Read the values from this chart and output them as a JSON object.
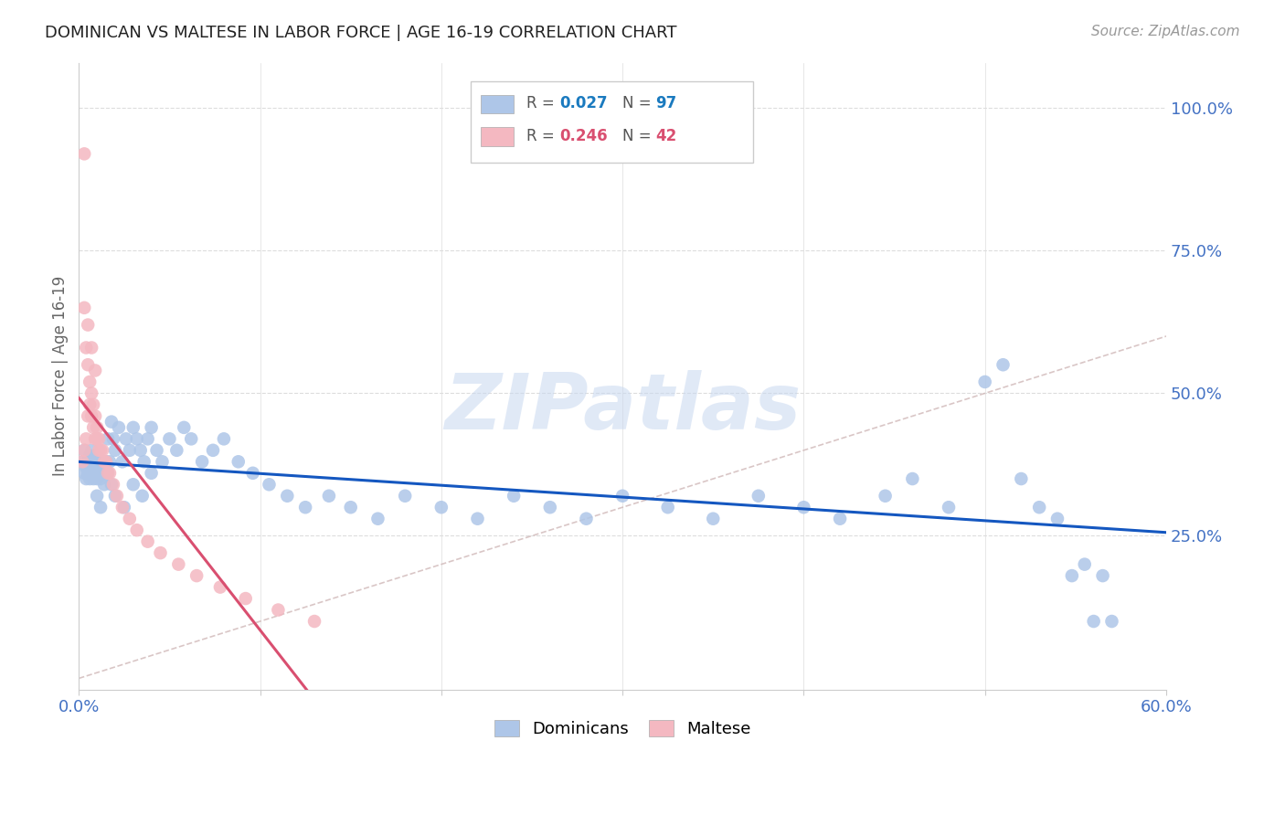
{
  "title": "DOMINICAN VS MALTESE IN LABOR FORCE | AGE 16-19 CORRELATION CHART",
  "source": "Source: ZipAtlas.com",
  "ylabel": "In Labor Force | Age 16-19",
  "xlim": [
    0.0,
    0.6
  ],
  "ylim": [
    -0.02,
    1.08
  ],
  "right_yticks": [
    0.25,
    0.5,
    0.75,
    1.0
  ],
  "right_yticklabels": [
    "25.0%",
    "50.0%",
    "75.0%",
    "100.0%"
  ],
  "dominican_color": "#aec6e8",
  "maltese_color": "#f4b8c1",
  "dominican_R": 0.027,
  "dominican_N": 97,
  "maltese_R": 0.246,
  "maltese_N": 42,
  "trend_blue": "#1457c0",
  "trend_pink": "#d94f70",
  "diagonal_color": "#d0b8b8",
  "legend_R_blue": "#1a7abf",
  "legend_R_pink": "#d94f70",
  "watermark": "ZIPatlas",
  "watermark_color": "#c8d8f0",
  "background_color": "#ffffff",
  "grid_color": "#dddddd",
  "axis_label_color": "#666666",
  "right_axis_color": "#4472c4",
  "dominican_x": [
    0.002,
    0.003,
    0.003,
    0.004,
    0.004,
    0.005,
    0.005,
    0.006,
    0.006,
    0.006,
    0.007,
    0.007,
    0.007,
    0.008,
    0.008,
    0.008,
    0.009,
    0.009,
    0.01,
    0.01,
    0.01,
    0.011,
    0.011,
    0.012,
    0.012,
    0.013,
    0.013,
    0.014,
    0.015,
    0.015,
    0.016,
    0.017,
    0.018,
    0.019,
    0.02,
    0.022,
    0.024,
    0.026,
    0.028,
    0.03,
    0.032,
    0.034,
    0.036,
    0.038,
    0.04,
    0.043,
    0.046,
    0.05,
    0.054,
    0.058,
    0.062,
    0.068,
    0.074,
    0.08,
    0.088,
    0.096,
    0.105,
    0.115,
    0.125,
    0.138,
    0.15,
    0.165,
    0.18,
    0.2,
    0.22,
    0.24,
    0.26,
    0.28,
    0.3,
    0.325,
    0.35,
    0.375,
    0.4,
    0.42,
    0.445,
    0.46,
    0.48,
    0.5,
    0.51,
    0.52,
    0.53,
    0.54,
    0.548,
    0.555,
    0.56,
    0.565,
    0.57,
    0.01,
    0.012,
    0.014,
    0.016,
    0.018,
    0.02,
    0.025,
    0.03,
    0.035,
    0.04
  ],
  "dominican_y": [
    0.38,
    0.36,
    0.4,
    0.37,
    0.35,
    0.38,
    0.36,
    0.37,
    0.39,
    0.35,
    0.36,
    0.38,
    0.4,
    0.37,
    0.35,
    0.39,
    0.36,
    0.38,
    0.37,
    0.35,
    0.39,
    0.36,
    0.38,
    0.37,
    0.35,
    0.38,
    0.36,
    0.37,
    0.38,
    0.36,
    0.42,
    0.38,
    0.45,
    0.42,
    0.4,
    0.44,
    0.38,
    0.42,
    0.4,
    0.44,
    0.42,
    0.4,
    0.38,
    0.42,
    0.44,
    0.4,
    0.38,
    0.42,
    0.4,
    0.44,
    0.42,
    0.38,
    0.4,
    0.42,
    0.38,
    0.36,
    0.34,
    0.32,
    0.3,
    0.32,
    0.3,
    0.28,
    0.32,
    0.3,
    0.28,
    0.32,
    0.3,
    0.28,
    0.32,
    0.3,
    0.28,
    0.32,
    0.3,
    0.28,
    0.32,
    0.35,
    0.3,
    0.52,
    0.55,
    0.35,
    0.3,
    0.28,
    0.18,
    0.2,
    0.1,
    0.18,
    0.1,
    0.32,
    0.3,
    0.34,
    0.36,
    0.34,
    0.32,
    0.3,
    0.34,
    0.32,
    0.36
  ],
  "maltese_x": [
    0.002,
    0.003,
    0.004,
    0.004,
    0.005,
    0.005,
    0.006,
    0.006,
    0.007,
    0.007,
    0.008,
    0.008,
    0.009,
    0.009,
    0.01,
    0.01,
    0.011,
    0.011,
    0.012,
    0.013,
    0.014,
    0.015,
    0.016,
    0.017,
    0.019,
    0.021,
    0.024,
    0.028,
    0.032,
    0.038,
    0.045,
    0.055,
    0.065,
    0.078,
    0.092,
    0.11,
    0.13,
    0.003,
    0.005,
    0.007,
    0.009,
    0.003
  ],
  "maltese_y": [
    0.38,
    0.4,
    0.58,
    0.42,
    0.55,
    0.46,
    0.52,
    0.48,
    0.5,
    0.46,
    0.48,
    0.44,
    0.46,
    0.42,
    0.44,
    0.42,
    0.42,
    0.4,
    0.4,
    0.4,
    0.38,
    0.38,
    0.36,
    0.36,
    0.34,
    0.32,
    0.3,
    0.28,
    0.26,
    0.24,
    0.22,
    0.2,
    0.18,
    0.16,
    0.14,
    0.12,
    0.1,
    0.65,
    0.62,
    0.58,
    0.54,
    0.92
  ]
}
